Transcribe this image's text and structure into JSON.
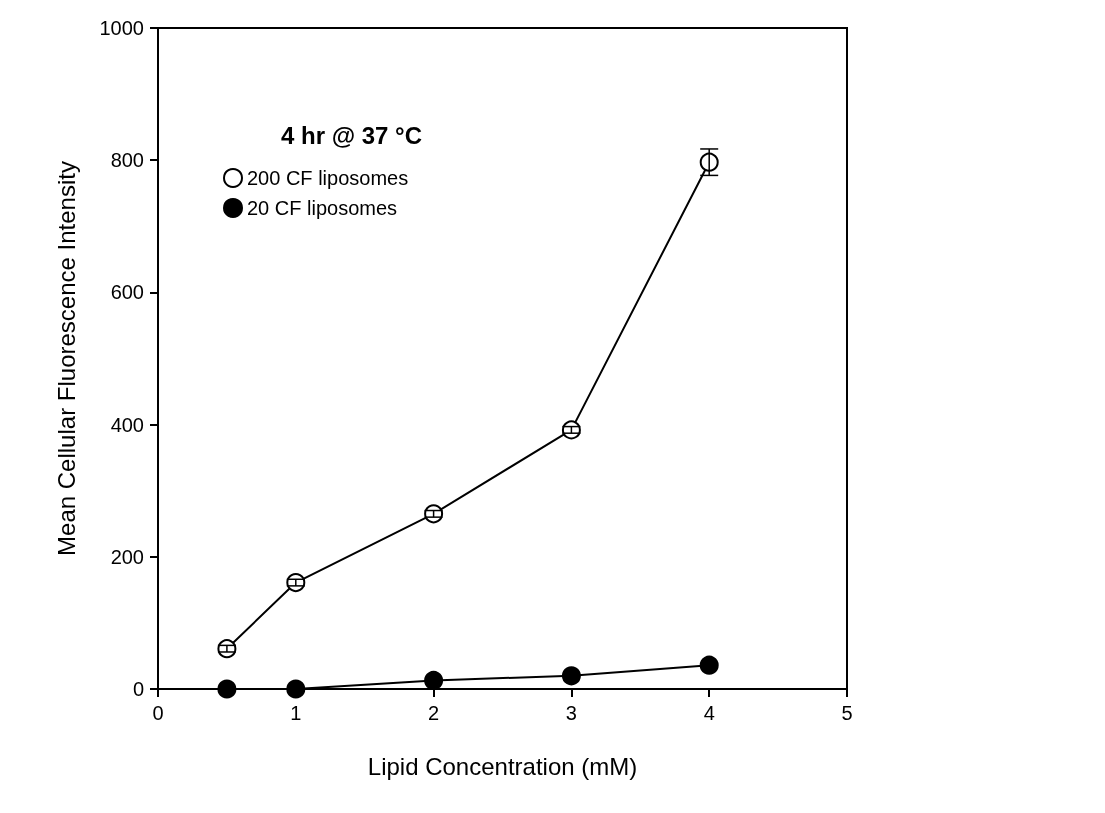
{
  "chart_data": {
    "type": "line",
    "title": "4 hr @ 37 °C",
    "xlabel": "Lipid Concentration (mM)",
    "ylabel": "Mean Cellular Fluorescence Intensity",
    "x": [
      0.5,
      1,
      2,
      3,
      4
    ],
    "series": [
      {
        "name": "200 CF liposomes",
        "color": "#000000",
        "values": [
          61,
          161,
          265,
          392,
          797
        ],
        "errors": [
          5,
          5,
          5,
          5,
          20
        ]
      },
      {
        "name": "20 CF liposomes",
        "color": "#000000",
        "values": [
          0,
          0,
          13,
          20,
          36
        ]
      }
    ],
    "xlim": [
      0,
      5
    ],
    "xticks": [
      0,
      1,
      2,
      3,
      4,
      5
    ],
    "ylim": [
      0,
      1000
    ],
    "yticks": [
      0,
      200,
      400,
      600,
      800,
      1000
    ],
    "grid": false,
    "legend": "top left",
    "marker": "circle",
    "line_style": "solid"
  }
}
